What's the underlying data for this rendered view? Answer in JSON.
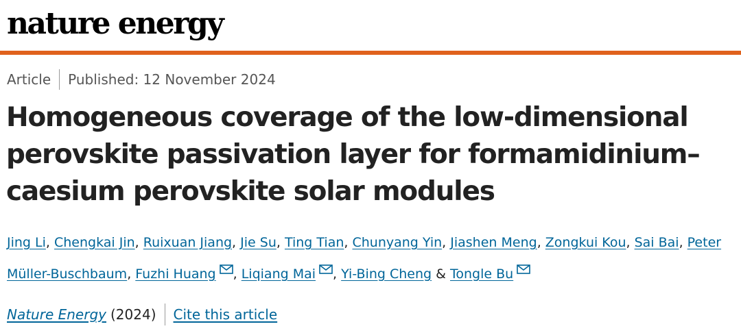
{
  "header": {
    "journal_logo": "nature energy"
  },
  "article_meta": {
    "type": "Article",
    "published": "Published: 12 November 2024"
  },
  "title": "Homogeneous coverage of the low-dimensional perovskite passivation layer for formamidinium–caesium perovskite solar modules",
  "authors": [
    {
      "name": "Jing Li",
      "sep": ",",
      "mail": false
    },
    {
      "name": "Chengkai Jin",
      "sep": ",",
      "mail": false
    },
    {
      "name": "Ruixuan Jiang",
      "sep": ",",
      "mail": false
    },
    {
      "name": "Jie Su",
      "sep": ",",
      "mail": false
    },
    {
      "name": "Ting Tian",
      "sep": ",",
      "mail": false
    },
    {
      "name": "Chunyang Yin",
      "sep": ",",
      "mail": false
    },
    {
      "name": "Jiashen Meng",
      "sep": ",",
      "mail": false
    },
    {
      "name": "Zongkui Kou",
      "sep": ",",
      "mail": false
    },
    {
      "name": "Sai Bai",
      "sep": ",",
      "mail": false
    },
    {
      "name": "Peter Müller-Buschbaum",
      "sep": ",",
      "mail": false
    },
    {
      "name": "Fuzhi Huang",
      "sep": ",",
      "mail": true
    },
    {
      "name": "Liqiang Mai",
      "sep": ",",
      "mail": true
    },
    {
      "name": "Yi-Bing Cheng",
      "sep": " &",
      "mail": false
    },
    {
      "name": "Tongle Bu",
      "sep": "",
      "mail": true
    }
  ],
  "citation": {
    "journal": "Nature Energy",
    "year": "(2024)",
    "cite_label": "Cite this article"
  },
  "colors": {
    "accent_rule": "#e0621d",
    "link": "#006599"
  }
}
